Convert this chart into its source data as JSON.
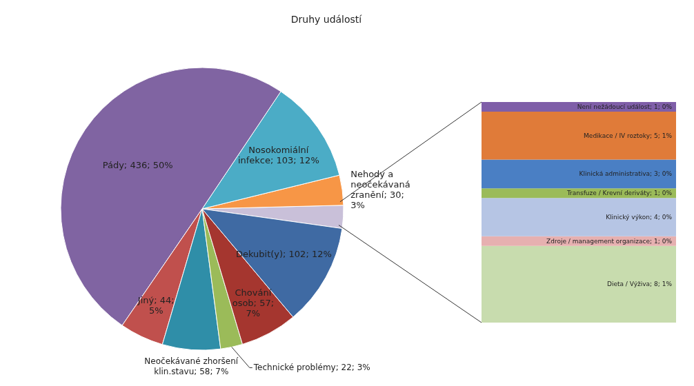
{
  "chart_data": [
    {
      "type": "pie",
      "title": "Druhy událostí",
      "categories": [
        null,
        "Nehody a neočekávaná zranění",
        "Nosokomiální infekce",
        "Pády",
        "Jiný",
        "Neočekávané zhoršení klin.stavu",
        "Technické problémy",
        "Chování osob",
        "Dekubit(y)"
      ],
      "values": [
        23,
        30,
        103,
        436,
        44,
        58,
        22,
        57,
        102
      ],
      "colors": [
        "#c9c0d9",
        "#f79646",
        "#4bacc6",
        "#8064a2",
        "#c0504d",
        "#2f8ea8",
        "#9bbb59",
        "#a5362f",
        "#3f6aa3"
      ],
      "value_labels": [
        null,
        "30; 3%",
        "103; 12%",
        "436; 50%",
        "44; 5%",
        "58; 7%",
        "22; 3%",
        "57; 7%",
        "102; 12%"
      ]
    },
    {
      "type": "bar",
      "stacked": true,
      "categories": [
        null
      ],
      "series": [
        {
          "name": "Dieta / Výživa;",
          "color": "#c8dcae",
          "values": [
            8
          ],
          "value_labels": [
            "8; 1%"
          ]
        },
        {
          "name": "Zdroje / management organizace;",
          "color": "#e6b0b0",
          "values": [
            1
          ],
          "value_labels": [
            "1; 0%"
          ]
        },
        {
          "name": "Klinický výkon;",
          "color": "#b6c5e4",
          "values": [
            4
          ],
          "value_labels": [
            "4; 0%"
          ]
        },
        {
          "name": "Transfuze / Krevní deriváty;",
          "color": "#9bbb59",
          "values": [
            1
          ],
          "value_labels": [
            "1; 0%"
          ]
        },
        {
          "name": "Klinická administrativa;",
          "color": "#4a7fc4",
          "values": [
            3
          ],
          "value_labels": [
            "3; 0%"
          ]
        },
        {
          "name": "Medikace / IV roztoky;",
          "color": "#e07b39",
          "values": [
            5
          ],
          "value_labels": [
            "5; 1%"
          ]
        },
        {
          "name": "Není nežádoucí událost;",
          "color": "#7f5ea8",
          "values": [
            1
          ],
          "value_labels": [
            "1; 0%"
          ]
        }
      ]
    }
  ]
}
